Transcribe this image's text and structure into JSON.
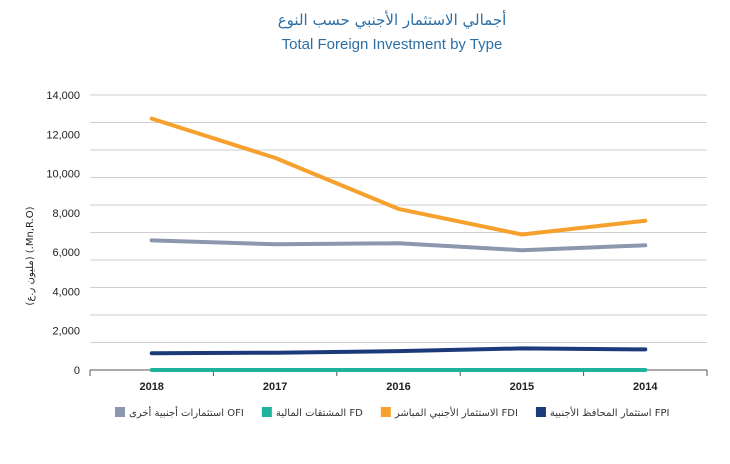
{
  "chart_data": {
    "type": "line",
    "title_ar": "أجمالي الاستثمار الأجنبي حسب النوع",
    "title": "Total Foreign Investment by Type",
    "ylabel": "(مليون ر.ع) (.Mn,R.O)",
    "xlabel": "",
    "categories": [
      "2018",
      "2017",
      "2016",
      "2015",
      "2014"
    ],
    "y_ticks": [
      "0",
      "2,000",
      "4,000",
      "6,000",
      "8,000",
      "10,000",
      "12,000",
      "14,000"
    ],
    "ylim": [
      0,
      14000
    ],
    "grid": true,
    "series": [
      {
        "name": "استثمارات أجنبية أخرى OFI",
        "color": "#8c97ad",
        "values": [
          6600,
          6400,
          6450,
          6100,
          6350
        ]
      },
      {
        "name": "المشتقات المالية FD",
        "color": "#1fb39e",
        "values": [
          0,
          0,
          0,
          0,
          0
        ]
      },
      {
        "name": "الاستثمار الأجنبي المباشر FDI",
        "color": "#f6a12d",
        "values": [
          12800,
          10800,
          8200,
          6900,
          7600
        ]
      },
      {
        "name": "استثمار المحافظ الأجنبية FPI",
        "color": "#1c3a7a",
        "values": [
          850,
          880,
          960,
          1100,
          1050
        ]
      }
    ]
  }
}
